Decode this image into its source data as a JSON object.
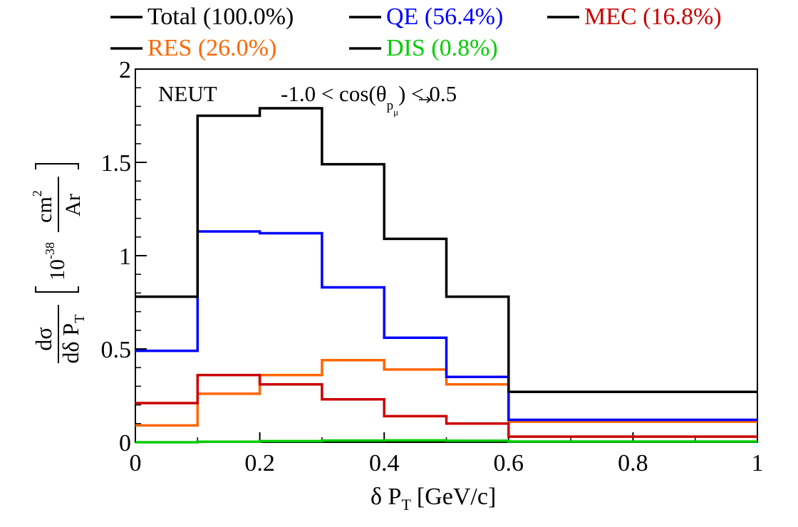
{
  "chart_data": {
    "type": "line",
    "step": true,
    "x_bin_edges": [
      0,
      0.1,
      0.2,
      0.3,
      0.4,
      0.5,
      0.6,
      1.0
    ],
    "xlim": [
      0,
      1
    ],
    "ylim": [
      0,
      2
    ],
    "x_ticks": [
      {
        "value": 0,
        "label": "0"
      },
      {
        "value": 0.2,
        "label": "0.2"
      },
      {
        "value": 0.4,
        "label": "0.4"
      },
      {
        "value": 0.6,
        "label": "0.6"
      },
      {
        "value": 0.8,
        "label": "0.8"
      },
      {
        "value": 1,
        "label": "1"
      }
    ],
    "y_ticks": [
      {
        "value": 0,
        "label": "0"
      },
      {
        "value": 0.5,
        "label": "0.5"
      },
      {
        "value": 1,
        "label": "1"
      },
      {
        "value": 1.5,
        "label": "1.5"
      },
      {
        "value": 2,
        "label": "2"
      }
    ],
    "xlabel": {
      "main": "δ P",
      "sub": "T",
      "unit": "[GeV/c]"
    },
    "ylabel": {
      "frac_num": "dσ",
      "frac_den": "dδ P",
      "frac_den_sub": "T",
      "unit_num": "cm",
      "unit_num_sup": "2",
      "unit_prefix": "10",
      "unit_prefix_sup": "-38",
      "unit_den": "Ar"
    },
    "annotation": {
      "generator": "NEUT",
      "cut_left": "-1.0 < cos(θ",
      "cut_sub": "p",
      "cut_sub2": "μ",
      "cut_right": ") < 0.5"
    },
    "legend_placement": "top",
    "grid": false,
    "series": [
      {
        "name": "Total (100.0%)",
        "color": "#000000",
        "values": [
          0.78,
          1.75,
          1.79,
          1.49,
          1.09,
          0.78,
          0.27
        ]
      },
      {
        "name": "QE (56.4%)",
        "color": "#0000ff",
        "values": [
          0.49,
          1.13,
          1.12,
          0.83,
          0.56,
          0.35,
          0.12
        ]
      },
      {
        "name": "MEC (16.8%)",
        "color": "#cc0000",
        "values": [
          0.21,
          0.36,
          0.31,
          0.23,
          0.14,
          0.1,
          0.03
        ]
      },
      {
        "name": "RES (26.0%)",
        "color": "#ff6600",
        "values": [
          0.09,
          0.26,
          0.36,
          0.44,
          0.39,
          0.31,
          0.11
        ]
      },
      {
        "name": "DIS (0.8%)",
        "color": "#00cc00",
        "values": [
          0.0,
          0.003,
          0.006,
          0.009,
          0.01,
          0.008,
          0.004
        ]
      }
    ]
  }
}
